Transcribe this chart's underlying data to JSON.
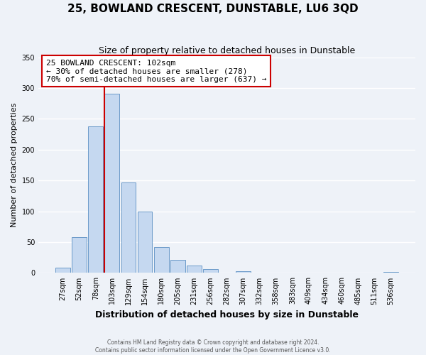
{
  "title": "25, BOWLAND CRESCENT, DUNSTABLE, LU6 3QD",
  "subtitle": "Size of property relative to detached houses in Dunstable",
  "xlabel": "Distribution of detached houses by size in Dunstable",
  "ylabel": "Number of detached properties",
  "bin_labels": [
    "27sqm",
    "52sqm",
    "78sqm",
    "103sqm",
    "129sqm",
    "154sqm",
    "180sqm",
    "205sqm",
    "231sqm",
    "256sqm",
    "282sqm",
    "307sqm",
    "332sqm",
    "358sqm",
    "383sqm",
    "409sqm",
    "434sqm",
    "460sqm",
    "485sqm",
    "511sqm",
    "536sqm"
  ],
  "bar_heights": [
    8,
    58,
    238,
    291,
    147,
    100,
    42,
    21,
    12,
    6,
    0,
    3,
    0,
    0,
    0,
    0,
    0,
    0,
    0,
    0,
    2
  ],
  "bar_color": "#c5d8f0",
  "bar_edge_color": "#5a8fc2",
  "property_line_label": "25 BOWLAND CRESCENT: 102sqm",
  "annotation_line1": "← 30% of detached houses are smaller (278)",
  "annotation_line2": "70% of semi-detached houses are larger (637) →",
  "box_color": "#cc0000",
  "ylim": [
    0,
    350
  ],
  "yticks": [
    0,
    50,
    100,
    150,
    200,
    250,
    300,
    350
  ],
  "footer1": "Contains HM Land Registry data © Crown copyright and database right 2024.",
  "footer2": "Contains public sector information licensed under the Open Government Licence v3.0.",
  "background_color": "#eef2f8",
  "grid_color": "#ffffff",
  "property_bin_index": 3
}
